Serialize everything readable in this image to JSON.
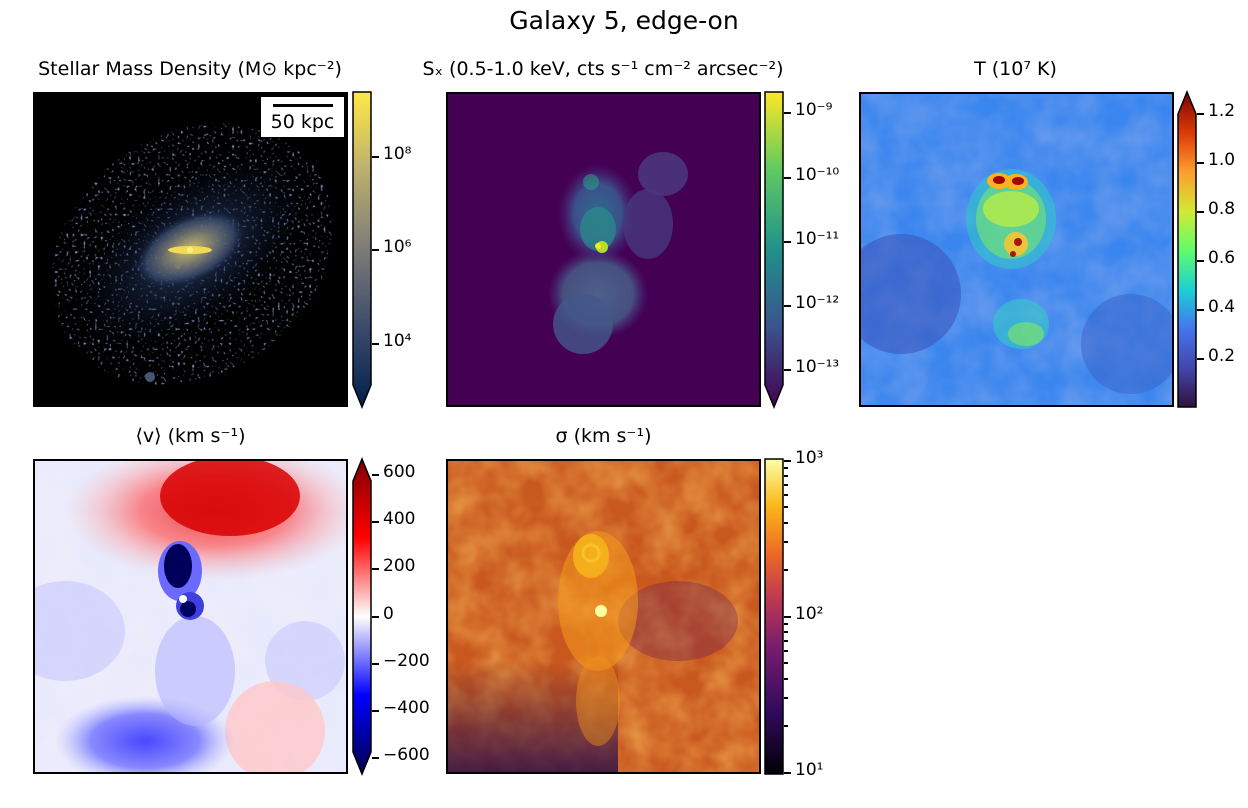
{
  "figure_title": "Galaxy 5, edge-on",
  "panels": {
    "stellar": {
      "title": "Stellar Mass Density (M⊙ kpc⁻²)",
      "scalebar": "50 kpc",
      "ticks": [
        "10⁸",
        "10⁶",
        "10⁴"
      ]
    },
    "xray": {
      "title": "Sₓ (0.5-1.0 keV, cts s⁻¹ cm⁻² arcsec⁻²)",
      "ticks": [
        "10⁻⁹",
        "10⁻¹⁰",
        "10⁻¹¹",
        "10⁻¹²",
        "10⁻¹³"
      ]
    },
    "temp": {
      "title": "T (10⁷ K)",
      "ticks": [
        "1.2",
        "1.0",
        "0.8",
        "0.6",
        "0.4",
        "0.2"
      ]
    },
    "vel": {
      "title": "⟨v⟩ (km s⁻¹)",
      "ticks": [
        "600",
        "400",
        "200",
        "0",
        "−200",
        "−400",
        "−600"
      ]
    },
    "sigma": {
      "title": "σ (km s⁻¹)",
      "ticks": [
        "10³",
        "10²",
        "10¹"
      ]
    }
  },
  "chart_data": [
    {
      "type": "heatmap",
      "title": "Stellar Mass Density (M⊙ kpc⁻²)",
      "colormap": "cividis",
      "scale": "log",
      "colorbar_ticks": [
        100000000,
        1000000,
        10000
      ],
      "colorbar_extend": "min",
      "annotation": "50 kpc"
    },
    {
      "type": "heatmap",
      "title": "Sₓ (0.5-1.0 keV, cts s⁻¹ cm⁻² arcsec⁻²)",
      "colormap": "viridis",
      "scale": "log",
      "colorbar_ticks": [
        1e-09,
        1e-10,
        1e-11,
        1e-12,
        1e-13
      ],
      "colorbar_extend": "min"
    },
    {
      "type": "heatmap",
      "title": "T (10⁷ K)",
      "colormap": "turbo",
      "scale": "linear",
      "clim": [
        0.0,
        1.27
      ],
      "colorbar_ticks": [
        1.2,
        1.0,
        0.8,
        0.6,
        0.4,
        0.2
      ],
      "colorbar_extend": "max"
    },
    {
      "type": "heatmap",
      "title": "⟨v⟩ (km s⁻¹)",
      "colormap": "seismic",
      "scale": "linear",
      "clim": [
        -650,
        650
      ],
      "colorbar_ticks": [
        600,
        400,
        200,
        0,
        -200,
        -400,
        -600
      ],
      "colorbar_extend": "both"
    },
    {
      "type": "heatmap",
      "title": "σ (km s⁻¹)",
      "colormap": "inferno",
      "scale": "log",
      "clim": [
        10,
        1000
      ],
      "colorbar_ticks": [
        1000,
        100,
        10
      ]
    }
  ]
}
